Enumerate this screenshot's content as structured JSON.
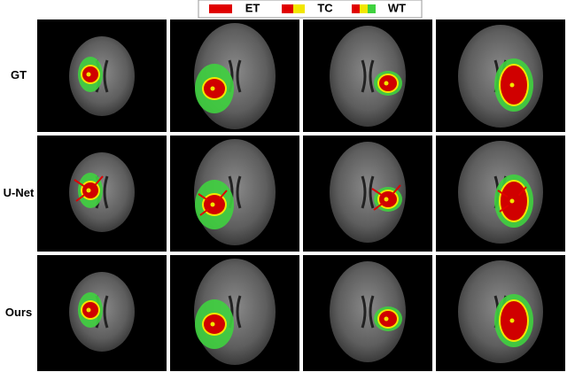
{
  "legend": [
    {
      "label": "ET"
    },
    {
      "label": "TC"
    },
    {
      "label": "WT"
    }
  ],
  "rows": [
    {
      "label": "GT"
    },
    {
      "label": "U-Net"
    },
    {
      "label": "Ours"
    }
  ]
}
